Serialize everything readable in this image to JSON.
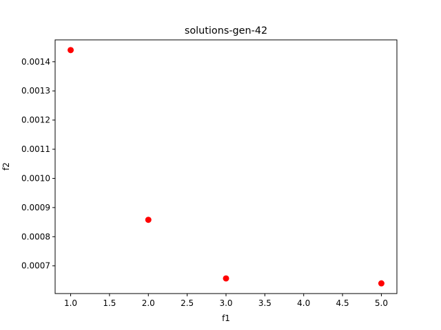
{
  "chart_data": {
    "type": "scatter",
    "title": "solutions-gen-42",
    "xlabel": "f1",
    "ylabel": "f2",
    "xlim": [
      0.8,
      5.2
    ],
    "ylim": [
      0.000605,
      0.001475
    ],
    "xticks": [
      1.0,
      1.5,
      2.0,
      2.5,
      3.0,
      3.5,
      4.0,
      4.5,
      5.0
    ],
    "xtick_labels": [
      "1.0",
      "1.5",
      "2.0",
      "2.5",
      "3.0",
      "3.5",
      "4.0",
      "4.5",
      "5.0"
    ],
    "yticks": [
      0.0007,
      0.0008,
      0.0009,
      0.001,
      0.0011,
      0.0012,
      0.0013,
      0.0014
    ],
    "ytick_labels": [
      "0.0007",
      "0.0008",
      "0.0009",
      "0.0010",
      "0.0011",
      "0.0012",
      "0.0013",
      "0.0014"
    ],
    "grid": false,
    "marker_color": "#ff0000",
    "points": [
      {
        "x": 1.0,
        "y": 0.00144
      },
      {
        "x": 2.0,
        "y": 0.000858
      },
      {
        "x": 3.0,
        "y": 0.000657
      },
      {
        "x": 5.0,
        "y": 0.00064
      }
    ]
  }
}
